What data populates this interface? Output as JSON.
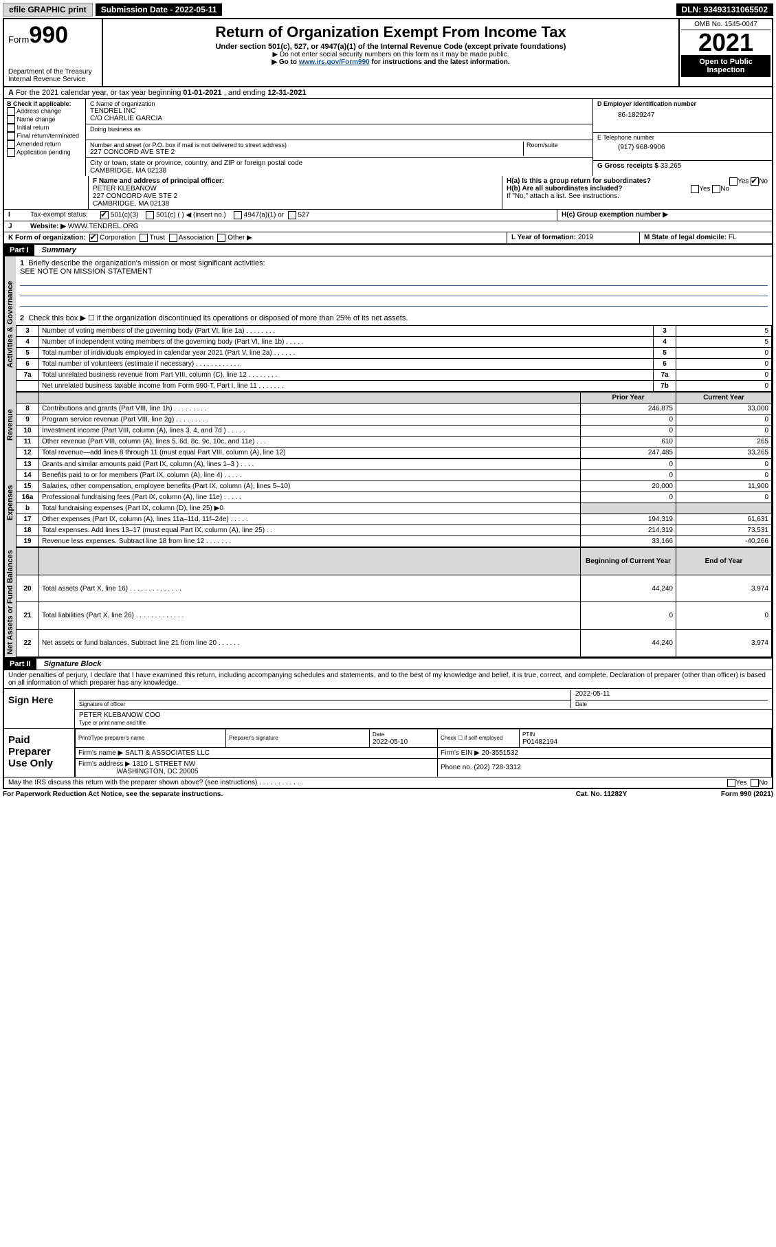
{
  "topbar": {
    "efile": "efile GRAPHIC print",
    "sub_label": "Submission Date",
    "sub_date": "2022-05-11",
    "dln_label": "DLN:",
    "dln": "93493131065502"
  },
  "header": {
    "form_prefix": "Form",
    "form_num": "990",
    "dept": "Department of the Treasury",
    "irs": "Internal Revenue Service",
    "title": "Return of Organization Exempt From Income Tax",
    "sub1": "Under section 501(c), 527, or 4947(a)(1) of the Internal Revenue Code (except private foundations)",
    "sub2": "▶ Do not enter social security numbers on this form as it may be made public.",
    "sub3_pre": "▶ Go to ",
    "sub3_link": "www.irs.gov/Form990",
    "sub3_post": " for instructions and the latest information.",
    "omb": "OMB No. 1545-0047",
    "year": "2021",
    "open1": "Open to Public",
    "open2": "Inspection"
  },
  "rowA": {
    "text_pre": "For the 2021 calendar year, or tax year beginning ",
    "begin": "01-01-2021",
    "mid": " , and ending ",
    "end": "12-31-2021"
  },
  "checkB": {
    "hdr": "B Check if applicable:",
    "addr": "Address change",
    "name": "Name change",
    "init": "Initial return",
    "final": "Final return/terminated",
    "amend": "Amended return",
    "app": "Application pending"
  },
  "orgC": {
    "name_lbl": "C Name of organization",
    "name": "TENDREL INC",
    "co": "C/O CHARLIE GARCIA",
    "dba_lbl": "Doing business as",
    "street_lbl": "Number and street (or P.O. box if mail is not delivered to street address)",
    "room_lbl": "Room/suite",
    "street": "227 CONCORD AVE STE 2",
    "city_lbl": "City or town, state or province, country, and ZIP or foreign postal code",
    "city": "CAMBRIDGE, MA  02138"
  },
  "rightHdr": {
    "ein_lbl": "D Employer identification number",
    "ein": "86-1829247",
    "tel_lbl": "E Telephone number",
    "tel": "(917) 968-9906",
    "gross_lbl": "G Gross receipts $",
    "gross": "33,265"
  },
  "rowF": {
    "lbl": "F Name and address of principal officer:",
    "name": "PETER KLEBANOW",
    "street": "227 CONCORD AVE STE 2",
    "city": "CAMBRIDGE, MA  02138"
  },
  "rowH": {
    "ha": "H(a)  Is this a group return for subordinates?",
    "hb": "H(b)  Are all subordinates included?",
    "hb_note": "If \"No,\" attach a list. See instructions.",
    "hc": "H(c)  Group exemption number ▶",
    "yes": "Yes",
    "no": "No"
  },
  "rowI": {
    "lbl": "Tax-exempt status:",
    "c3": "501(c)(3)",
    "c": "501(c) (  ) ◀ (insert no.)",
    "a1": "4947(a)(1) or",
    "527": "527"
  },
  "rowJ": {
    "lbl": "Website: ▶",
    "val": "WWW.TENDREL.ORG"
  },
  "rowK": {
    "lbl": "K Form of organization:",
    "corp": "Corporation",
    "trust": "Trust",
    "assoc": "Association",
    "other": "Other ▶"
  },
  "rowL": {
    "lbl": "L Year of formation:",
    "val": "2019"
  },
  "rowM": {
    "lbl": "M State of legal domicile:",
    "val": "FL"
  },
  "part1": {
    "hdr": "Part I",
    "title": "Summary",
    "tab_gov": "Activities & Governance",
    "tab_rev": "Revenue",
    "tab_exp": "Expenses",
    "tab_net": "Net Assets or Fund Balances",
    "l1": "Briefly describe the organization's mission or most significant activities:",
    "l1_val": "SEE NOTE ON MISSION STATEMENT",
    "l2": "Check this box ▶ ☐  if the organization discontinued its operations or disposed of more than 25% of its net assets.",
    "prior": "Prior Year",
    "current": "Current Year",
    "boy": "Beginning of Current Year",
    "eoy": "End of Year",
    "rows": [
      {
        "n": "3",
        "t": "Number of voting members of the governing body (Part VI, line 1a)   .    .    .    .    .    .    .    .",
        "lab": "3",
        "v": "5"
      },
      {
        "n": "4",
        "t": "Number of independent voting members of the governing body (Part VI, line 1b)   .    .    .    .    .",
        "lab": "4",
        "v": "5"
      },
      {
        "n": "5",
        "t": "Total number of individuals employed in calendar year 2021 (Part V, line 2a)   .    .    .    .    .    .",
        "lab": "5",
        "v": "0"
      },
      {
        "n": "6",
        "t": "Total number of volunteers (estimate if necessary)   .    .    .    .    .    .    .    .    .    .    .    .",
        "lab": "6",
        "v": "0"
      },
      {
        "n": "7a",
        "t": "Total unrelated business revenue from Part VIII, column (C), line 12   .    .    .    .    .    .    .    .",
        "lab": "7a",
        "v": "0"
      },
      {
        "n": "",
        "t": "Net unrelated business taxable income from Form 990-T, Part I, line 11   .    .    .    .    .    .    .",
        "lab": "7b",
        "v": "0"
      }
    ],
    "rev": [
      {
        "n": "8",
        "t": "Contributions and grants (Part VIII, line 1h)   .     .     .     .     .     .     .     .     .",
        "p": "246,875",
        "c": "33,000"
      },
      {
        "n": "9",
        "t": "Program service revenue (Part VIII, line 2g)    .     .     .     .     .     .     .     .     .",
        "p": "0",
        "c": "0"
      },
      {
        "n": "10",
        "t": "Investment income (Part VIII, column (A), lines 3, 4, and 7d )    .     .     .     .     .",
        "p": "0",
        "c": "0"
      },
      {
        "n": "11",
        "t": "Other revenue (Part VIII, column (A), lines 5, 6d, 8c, 9c, 10c, and 11e)    .     .     .",
        "p": "610",
        "c": "265"
      },
      {
        "n": "12",
        "t": "Total revenue—add lines 8 through 11 (must equal Part VIII, column (A), line 12)",
        "p": "247,485",
        "c": "33,265"
      }
    ],
    "exp": [
      {
        "n": "13",
        "t": "Grants and similar amounts paid (Part IX, column (A), lines 1–3 )    .     .     .     .",
        "p": "0",
        "c": "0"
      },
      {
        "n": "14",
        "t": "Benefits paid to or for members (Part IX, column (A), line 4)    .     .     .     .     .",
        "p": "0",
        "c": "0"
      },
      {
        "n": "15",
        "t": "Salaries, other compensation, employee benefits (Part IX, column (A), lines 5–10)",
        "p": "20,000",
        "c": "11,900"
      },
      {
        "n": "16a",
        "t": "Professional fundraising fees (Part IX, column (A), line 11e)    .     .     .     .     .",
        "p": "0",
        "c": "0"
      },
      {
        "n": "b",
        "t": "Total fundraising expenses (Part IX, column (D), line 25) ▶0",
        "p": "",
        "c": "",
        "grey": true
      },
      {
        "n": "17",
        "t": "Other expenses (Part IX, column (A), lines 11a–11d, 11f–24e)    .     .     .     .     .",
        "p": "194,319",
        "c": "61,631"
      },
      {
        "n": "18",
        "t": "Total expenses. Add lines 13–17 (must equal Part IX, column (A), line 25)    .     .",
        "p": "214,319",
        "c": "73,531"
      },
      {
        "n": "19",
        "t": "Revenue less expenses. Subtract line 18 from line 12    .     .     .     .     .     .     .",
        "p": "33,166",
        "c": "-40,266"
      }
    ],
    "net": [
      {
        "n": "20",
        "t": "Total assets (Part X, line 16)   .    .    .    .    .    .    .    .    .    .    .    .    .    .",
        "p": "44,240",
        "c": "3,974"
      },
      {
        "n": "21",
        "t": "Total liabilities (Part X, line 26)    .    .    .    .    .    .    .    .    .    .    .    .    .",
        "p": "0",
        "c": "0"
      },
      {
        "n": "22",
        "t": "Net assets or fund balances. Subtract line 21 from line 20    .    .    .    .    .    .",
        "p": "44,240",
        "c": "3,974"
      }
    ]
  },
  "part2": {
    "hdr": "Part II",
    "title": "Signature Block",
    "decl": "Under penalties of perjury, I declare that I have examined this return, including accompanying schedules and statements, and to the best of my knowledge and belief, it is true, correct, and complete. Declaration of preparer (other than officer) is based on all information of which preparer has any knowledge.",
    "sign_here": "Sign Here",
    "sig_officer": "Signature of officer",
    "sig_date": "Date",
    "sig_date_val": "2022-05-11",
    "sig_name": "PETER KLEBANOW  COO",
    "sig_name_lbl": "Type or print name and title",
    "paid": "Paid Preparer Use Only",
    "prep_name_lbl": "Print/Type preparer's name",
    "prep_sig_lbl": "Preparer's signature",
    "prep_date_lbl": "Date",
    "prep_date": "2022-05-10",
    "check_if": "Check ☐ if self-employed",
    "ptin_lbl": "PTIN",
    "ptin": "P01482194",
    "firm_name_lbl": "Firm's name   ▶",
    "firm_name": "SALTI & ASSOCIATES LLC",
    "firm_ein_lbl": "Firm's EIN ▶",
    "firm_ein": "20-3551532",
    "firm_addr_lbl": "Firm's address ▶",
    "firm_addr1": "1310 L STREET NW",
    "firm_addr2": "WASHINGTON, DC  20005",
    "firm_phone_lbl": "Phone no.",
    "firm_phone": "(202) 728-3312",
    "discuss": "May the IRS discuss this return with the preparer shown above? (see instructions)     .     .     .     .     .     .     .     .     .     .     .     ."
  },
  "footer": {
    "pra": "For Paperwork Reduction Act Notice, see the separate instructions.",
    "cat": "Cat. No. 11282Y",
    "form": "Form 990 (2021)"
  }
}
